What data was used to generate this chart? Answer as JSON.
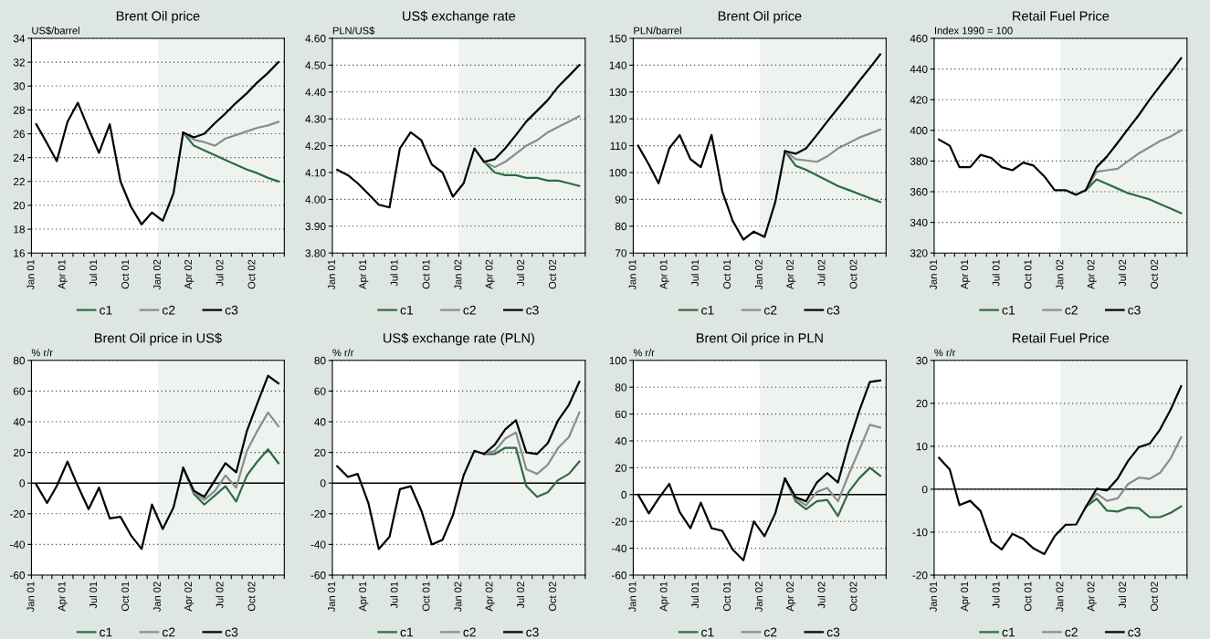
{
  "chart_data": [
    {
      "type": "line",
      "title": "Brent Oil price",
      "ylabel": "US$/barrel",
      "x": [
        "2001-01-15",
        "2001-02-15",
        "2001-03-15",
        "2001-04-15",
        "2001-05-15",
        "2001-06-15",
        "2001-07-15",
        "2001-08-15",
        "2001-09-15",
        "2001-10-15",
        "2001-11-15",
        "2001-12-15",
        "2002-01-15",
        "2002-02-15",
        "2002-03-15",
        "2002-04-15",
        "2002-05-15",
        "2002-06-15",
        "2002-07-15",
        "2002-08-15",
        "2002-09-15",
        "2002-10-15",
        "2002-11-15",
        "2002-12-15"
      ],
      "series": [
        {
          "name": "c1",
          "color": "#2e6b45",
          "values": [
            null,
            null,
            null,
            null,
            null,
            null,
            null,
            null,
            null,
            null,
            null,
            null,
            null,
            null,
            26.1,
            25.0,
            24.6,
            24.2,
            23.8,
            23.4,
            23.0,
            22.7,
            22.3,
            22.0
          ]
        },
        {
          "name": "c2",
          "color": "#8c8c8c",
          "values": [
            null,
            null,
            null,
            null,
            null,
            null,
            null,
            null,
            null,
            null,
            null,
            null,
            null,
            null,
            26.1,
            25.5,
            25.3,
            25.0,
            25.6,
            25.9,
            26.2,
            26.5,
            26.7,
            27.0
          ]
        },
        {
          "name": "c3",
          "color": "#000000",
          "values": [
            26.8,
            25.2,
            23.7,
            27.0,
            28.6,
            26.4,
            24.4,
            26.8,
            22.0,
            19.9,
            18.4,
            19.4,
            18.7,
            21.0,
            26.1,
            25.7,
            26.0,
            26.9,
            27.7,
            28.6,
            29.4,
            30.3,
            31.1,
            32.0
          ]
        }
      ],
      "xlim": [
        "2001-01",
        "2003-01"
      ],
      "xticks": [
        {
          "value": "2001-01",
          "label": "Jan 01"
        },
        {
          "value": "2001-02",
          "label": null
        },
        {
          "value": "2001-03",
          "label": null
        },
        {
          "value": "2001-04",
          "label": "Apr 01"
        },
        {
          "value": "2001-05",
          "label": null
        },
        {
          "value": "2001-06",
          "label": null
        },
        {
          "value": "2001-07",
          "label": "Jul 01"
        },
        {
          "value": "2001-08",
          "label": null
        },
        {
          "value": "2001-09",
          "label": null
        },
        {
          "value": "2001-10",
          "label": "Oct 01"
        },
        {
          "value": "2001-11",
          "label": null
        },
        {
          "value": "2001-12",
          "label": null
        },
        {
          "value": "2002-01",
          "label": "Jan 02"
        },
        {
          "value": "2002-02",
          "label": null
        },
        {
          "value": "2002-03",
          "label": null
        },
        {
          "value": "2002-04",
          "label": "Apr 02"
        },
        {
          "value": "2002-05",
          "label": null
        },
        {
          "value": "2002-06",
          "label": null
        },
        {
          "value": "2002-07",
          "label": "Jul 02"
        },
        {
          "value": "2002-08",
          "label": null
        },
        {
          "value": "2002-09",
          "label": null
        },
        {
          "value": "2002-10",
          "label": "Oct 02"
        },
        {
          "value": "2002-11",
          "label": null
        },
        {
          "value": "2002-12",
          "label": null
        },
        {
          "value": "2003-01",
          "label": null
        }
      ],
      "ylim": [
        16,
        34
      ],
      "yticks": [
        16,
        18,
        20,
        22,
        24,
        26,
        28,
        30,
        32,
        34
      ],
      "bands": [
        {
          "axis": "x",
          "from": "2002-01",
          "to": "2003-01",
          "label": null,
          "color": "#eef3f0"
        }
      ],
      "grid": "y",
      "legend": "bottom"
    },
    {
      "type": "line",
      "title": "US$ exchange rate",
      "ylabel": "PLN/US$",
      "x": [
        "2001-01-15",
        "2001-02-15",
        "2001-03-15",
        "2001-04-15",
        "2001-05-15",
        "2001-06-15",
        "2001-07-15",
        "2001-08-15",
        "2001-09-15",
        "2001-10-15",
        "2001-11-15",
        "2001-12-15",
        "2002-01-15",
        "2002-02-15",
        "2002-03-15",
        "2002-04-15",
        "2002-05-15",
        "2002-06-15",
        "2002-07-15",
        "2002-08-15",
        "2002-09-15",
        "2002-10-15",
        "2002-11-15",
        "2002-12-15"
      ],
      "series": [
        {
          "name": "c1",
          "color": "#2e6b45",
          "values": [
            null,
            null,
            null,
            null,
            null,
            null,
            null,
            null,
            null,
            null,
            null,
            null,
            null,
            null,
            4.14,
            4.1,
            4.09,
            4.09,
            4.08,
            4.08,
            4.07,
            4.07,
            4.06,
            4.05
          ]
        },
        {
          "name": "c2",
          "color": "#8c8c8c",
          "values": [
            null,
            null,
            null,
            null,
            null,
            null,
            null,
            null,
            null,
            null,
            null,
            null,
            null,
            null,
            4.14,
            4.12,
            4.14,
            4.17,
            4.2,
            4.22,
            4.25,
            4.27,
            4.29,
            4.31
          ]
        },
        {
          "name": "c3",
          "color": "#000000",
          "values": [
            4.11,
            4.09,
            4.06,
            4.02,
            3.98,
            3.97,
            4.19,
            4.25,
            4.22,
            4.13,
            4.1,
            4.01,
            4.06,
            4.19,
            4.14,
            4.15,
            4.19,
            4.24,
            4.29,
            4.33,
            4.37,
            4.42,
            4.46,
            4.5
          ]
        }
      ],
      "xlim": [
        "2001-01",
        "2003-01"
      ],
      "xticks": [
        {
          "value": "2001-01",
          "label": "Jan 01"
        },
        {
          "value": "2001-02",
          "label": null
        },
        {
          "value": "2001-03",
          "label": null
        },
        {
          "value": "2001-04",
          "label": "Apr 01"
        },
        {
          "value": "2001-05",
          "label": null
        },
        {
          "value": "2001-06",
          "label": null
        },
        {
          "value": "2001-07",
          "label": "Jul 01"
        },
        {
          "value": "2001-08",
          "label": null
        },
        {
          "value": "2001-09",
          "label": null
        },
        {
          "value": "2001-10",
          "label": "Oct 01"
        },
        {
          "value": "2001-11",
          "label": null
        },
        {
          "value": "2001-12",
          "label": null
        },
        {
          "value": "2002-01",
          "label": "Jan 02"
        },
        {
          "value": "2002-02",
          "label": null
        },
        {
          "value": "2002-03",
          "label": null
        },
        {
          "value": "2002-04",
          "label": "Apr 02"
        },
        {
          "value": "2002-05",
          "label": null
        },
        {
          "value": "2002-06",
          "label": null
        },
        {
          "value": "2002-07",
          "label": "Jul 02"
        },
        {
          "value": "2002-08",
          "label": null
        },
        {
          "value": "2002-09",
          "label": null
        },
        {
          "value": "2002-10",
          "label": "Oct 02"
        },
        {
          "value": "2002-11",
          "label": null
        },
        {
          "value": "2002-12",
          "label": null
        },
        {
          "value": "2003-01",
          "label": null
        }
      ],
      "ylim": [
        3.8,
        4.6
      ],
      "yticks": [
        {
          "value": 3.8,
          "label": "3.80"
        },
        {
          "value": 3.9,
          "label": "3.90"
        },
        {
          "value": 4.0,
          "label": "4.00"
        },
        {
          "value": 4.1,
          "label": "4.10"
        },
        {
          "value": 4.2,
          "label": "4.20"
        },
        {
          "value": 4.3,
          "label": "4.30"
        },
        {
          "value": 4.4,
          "label": "4.40"
        },
        {
          "value": 4.5,
          "label": "4.50"
        },
        {
          "value": 4.6,
          "label": "4.60"
        }
      ],
      "bands": [
        {
          "axis": "x",
          "from": "2002-01",
          "to": "2003-01",
          "label": null,
          "color": "#eef3f0"
        }
      ],
      "grid": "y",
      "legend": "bottom"
    },
    {
      "type": "line",
      "title": "Brent Oil price",
      "ylabel": "PLN/barrel",
      "x": [
        "2001-01-15",
        "2001-02-15",
        "2001-03-15",
        "2001-04-15",
        "2001-05-15",
        "2001-06-15",
        "2001-07-15",
        "2001-08-15",
        "2001-09-15",
        "2001-10-15",
        "2001-11-15",
        "2001-12-15",
        "2002-01-15",
        "2002-02-15",
        "2002-03-15",
        "2002-04-15",
        "2002-05-15",
        "2002-06-15",
        "2002-07-15",
        "2002-08-15",
        "2002-09-15",
        "2002-10-15",
        "2002-11-15",
        "2002-12-15"
      ],
      "series": [
        {
          "name": "c1",
          "color": "#2e6b45",
          "values": [
            null,
            null,
            null,
            null,
            null,
            null,
            null,
            null,
            null,
            null,
            null,
            null,
            null,
            null,
            108,
            102.5,
            101,
            99,
            97,
            95,
            93.5,
            92,
            90.5,
            89
          ]
        },
        {
          "name": "c2",
          "color": "#8c8c8c",
          "values": [
            null,
            null,
            null,
            null,
            null,
            null,
            null,
            null,
            null,
            null,
            null,
            null,
            null,
            null,
            108,
            105,
            104.5,
            104,
            106,
            109,
            111,
            113,
            114.5,
            116
          ]
        },
        {
          "name": "c3",
          "color": "#000000",
          "values": [
            110,
            103,
            96,
            109,
            114,
            105,
            102,
            114,
            93,
            82,
            75,
            78,
            76,
            89,
            108,
            107,
            109,
            114,
            119,
            124,
            129,
            134,
            139,
            144
          ]
        }
      ],
      "xlim": [
        "2001-01",
        "2003-01"
      ],
      "xticks": [
        {
          "value": "2001-01",
          "label": "Jan 01"
        },
        {
          "value": "2001-02",
          "label": null
        },
        {
          "value": "2001-03",
          "label": null
        },
        {
          "value": "2001-04",
          "label": "Apr 01"
        },
        {
          "value": "2001-05",
          "label": null
        },
        {
          "value": "2001-06",
          "label": null
        },
        {
          "value": "2001-07",
          "label": "Jul 01"
        },
        {
          "value": "2001-08",
          "label": null
        },
        {
          "value": "2001-09",
          "label": null
        },
        {
          "value": "2001-10",
          "label": "Oct 01"
        },
        {
          "value": "2001-11",
          "label": null
        },
        {
          "value": "2001-12",
          "label": null
        },
        {
          "value": "2002-01",
          "label": "Jan 02"
        },
        {
          "value": "2002-02",
          "label": null
        },
        {
          "value": "2002-03",
          "label": null
        },
        {
          "value": "2002-04",
          "label": "Apr 02"
        },
        {
          "value": "2002-05",
          "label": null
        },
        {
          "value": "2002-06",
          "label": null
        },
        {
          "value": "2002-07",
          "label": "Jul 02"
        },
        {
          "value": "2002-08",
          "label": null
        },
        {
          "value": "2002-09",
          "label": null
        },
        {
          "value": "2002-10",
          "label": "Oct 02"
        },
        {
          "value": "2002-11",
          "label": null
        },
        {
          "value": "2002-12",
          "label": null
        },
        {
          "value": "2003-01",
          "label": null
        }
      ],
      "ylim": [
        70,
        150
      ],
      "yticks": [
        70,
        80,
        90,
        100,
        110,
        120,
        130,
        140,
        150
      ],
      "bands": [
        {
          "axis": "x",
          "from": "2002-01",
          "to": "2003-01",
          "label": null,
          "color": "#eef3f0"
        }
      ],
      "grid": "y",
      "legend": "bottom"
    },
    {
      "type": "line",
      "title": "Retail Fuel Price",
      "ylabel": "Index 1990 = 100",
      "x": [
        "2001-01-15",
        "2001-02-15",
        "2001-03-15",
        "2001-04-15",
        "2001-05-15",
        "2001-06-15",
        "2001-07-15",
        "2001-08-15",
        "2001-09-15",
        "2001-10-15",
        "2001-11-15",
        "2001-12-15",
        "2002-01-15",
        "2002-02-15",
        "2002-03-15",
        "2002-04-15",
        "2002-05-15",
        "2002-06-15",
        "2002-07-15",
        "2002-08-15",
        "2002-09-15",
        "2002-10-15",
        "2002-11-15",
        "2002-12-15"
      ],
      "series": [
        {
          "name": "c1",
          "color": "#2e6b45",
          "values": [
            null,
            null,
            null,
            null,
            null,
            null,
            null,
            null,
            null,
            null,
            null,
            null,
            null,
            null,
            361,
            368,
            365,
            362,
            359,
            357,
            355,
            352,
            349,
            346
          ]
        },
        {
          "name": "c2",
          "color": "#8c8c8c",
          "values": [
            null,
            null,
            null,
            null,
            null,
            null,
            null,
            null,
            null,
            null,
            null,
            null,
            null,
            null,
            361,
            373,
            374,
            375,
            380,
            385,
            389,
            393,
            396,
            400
          ]
        },
        {
          "name": "c3",
          "color": "#000000",
          "values": [
            394,
            390,
            376,
            376,
            384,
            382,
            376,
            374,
            379,
            377,
            370,
            361,
            361,
            358,
            361,
            376,
            383,
            392,
            401,
            410,
            420,
            429,
            438,
            447
          ]
        }
      ],
      "xlim": [
        "2001-01",
        "2003-01"
      ],
      "xticks": [
        {
          "value": "2001-01",
          "label": "Jan 01"
        },
        {
          "value": "2001-02",
          "label": null
        },
        {
          "value": "2001-03",
          "label": null
        },
        {
          "value": "2001-04",
          "label": "Apr 01"
        },
        {
          "value": "2001-05",
          "label": null
        },
        {
          "value": "2001-06",
          "label": null
        },
        {
          "value": "2001-07",
          "label": "Jul 01"
        },
        {
          "value": "2001-08",
          "label": null
        },
        {
          "value": "2001-09",
          "label": null
        },
        {
          "value": "2001-10",
          "label": "Oct 01"
        },
        {
          "value": "2001-11",
          "label": null
        },
        {
          "value": "2001-12",
          "label": null
        },
        {
          "value": "2002-01",
          "label": "Jan 02"
        },
        {
          "value": "2002-02",
          "label": null
        },
        {
          "value": "2002-03",
          "label": null
        },
        {
          "value": "2002-04",
          "label": "Apr 02"
        },
        {
          "value": "2002-05",
          "label": null
        },
        {
          "value": "2002-06",
          "label": null
        },
        {
          "value": "2002-07",
          "label": "Jul 02"
        },
        {
          "value": "2002-08",
          "label": null
        },
        {
          "value": "2002-09",
          "label": null
        },
        {
          "value": "2002-10",
          "label": "Oct 02"
        },
        {
          "value": "2002-11",
          "label": null
        },
        {
          "value": "2002-12",
          "label": null
        },
        {
          "value": "2003-01",
          "label": null
        }
      ],
      "ylim": [
        320,
        460
      ],
      "yticks": [
        320,
        340,
        360,
        380,
        400,
        420,
        440,
        460
      ],
      "bands": [
        {
          "axis": "x",
          "from": "2002-01",
          "to": "2003-01",
          "label": null,
          "color": "#eef3f0"
        }
      ],
      "grid": "y",
      "legend": "bottom"
    },
    {
      "type": "line",
      "title": "Brent Oil price in US$",
      "ylabel": "% r/r",
      "x": [
        "2001-01-15",
        "2001-02-15",
        "2001-03-15",
        "2001-04-15",
        "2001-05-15",
        "2001-06-15",
        "2001-07-15",
        "2001-08-15",
        "2001-09-15",
        "2001-10-15",
        "2001-11-15",
        "2001-12-15",
        "2002-01-15",
        "2002-02-15",
        "2002-03-15",
        "2002-04-15",
        "2002-05-15",
        "2002-06-15",
        "2002-07-15",
        "2002-08-15",
        "2002-09-15",
        "2002-10-15",
        "2002-11-15",
        "2002-12-15"
      ],
      "series": [
        {
          "name": "c1",
          "color": "#2e6b45",
          "values": [
            null,
            null,
            null,
            null,
            null,
            null,
            null,
            null,
            null,
            null,
            null,
            null,
            null,
            null,
            10,
            -7,
            -14,
            -8,
            -2,
            -12,
            5,
            14,
            22,
            13
          ]
        },
        {
          "name": "c2",
          "color": "#8c8c8c",
          "values": [
            null,
            null,
            null,
            null,
            null,
            null,
            null,
            null,
            null,
            null,
            null,
            null,
            null,
            null,
            10,
            -6,
            -11,
            -5,
            5,
            -3,
            21,
            34,
            46,
            37
          ]
        },
        {
          "name": "c3",
          "color": "#000000",
          "values": [
            -1,
            -13,
            -2,
            14,
            -2,
            -17,
            -3,
            -23,
            -22,
            -34,
            -43,
            -14,
            -30,
            -16,
            10,
            -5,
            -9,
            2,
            13,
            7,
            34,
            52,
            70,
            65
          ]
        }
      ],
      "xlim": [
        "2001-01",
        "2003-01"
      ],
      "xticks": [
        {
          "value": "2001-01",
          "label": "Jan 01"
        },
        {
          "value": "2001-02",
          "label": null
        },
        {
          "value": "2001-03",
          "label": null
        },
        {
          "value": "2001-04",
          "label": "Apr 01"
        },
        {
          "value": "2001-05",
          "label": null
        },
        {
          "value": "2001-06",
          "label": null
        },
        {
          "value": "2001-07",
          "label": "Jul 01"
        },
        {
          "value": "2001-08",
          "label": null
        },
        {
          "value": "2001-09",
          "label": null
        },
        {
          "value": "2001-10",
          "label": "Oct 01"
        },
        {
          "value": "2001-11",
          "label": null
        },
        {
          "value": "2001-12",
          "label": null
        },
        {
          "value": "2002-01",
          "label": "Jan 02"
        },
        {
          "value": "2002-02",
          "label": null
        },
        {
          "value": "2002-03",
          "label": null
        },
        {
          "value": "2002-04",
          "label": "Apr 02"
        },
        {
          "value": "2002-05",
          "label": null
        },
        {
          "value": "2002-06",
          "label": null
        },
        {
          "value": "2002-07",
          "label": "Jul 02"
        },
        {
          "value": "2002-08",
          "label": null
        },
        {
          "value": "2002-09",
          "label": null
        },
        {
          "value": "2002-10",
          "label": "Oct 02"
        },
        {
          "value": "2002-11",
          "label": null
        },
        {
          "value": "2002-12",
          "label": null
        },
        {
          "value": "2003-01",
          "label": null
        }
      ],
      "ylim": [
        -60,
        80
      ],
      "yticks": [
        -60,
        -40,
        -20,
        0,
        20,
        40,
        60,
        80
      ],
      "bands": [
        {
          "axis": "x",
          "from": "2002-01",
          "to": "2003-01",
          "label": null,
          "color": "#eef3f0"
        }
      ],
      "ref_lines": [
        {
          "axis": "y",
          "value": 0,
          "label": null,
          "color": "#000000"
        }
      ],
      "grid": "y",
      "legend": "bottom"
    },
    {
      "type": "line",
      "title": "US$ exchange rate (PLN)",
      "ylabel": "% r/r",
      "x": [
        "2001-01-15",
        "2001-02-15",
        "2001-03-15",
        "2001-04-15",
        "2001-05-15",
        "2001-06-15",
        "2001-07-15",
        "2001-08-15",
        "2001-09-15",
        "2001-10-15",
        "2001-11-15",
        "2001-12-15",
        "2002-01-15",
        "2002-02-15",
        "2002-03-15",
        "2002-04-15",
        "2002-05-15",
        "2002-06-15",
        "2002-07-15",
        "2002-08-15",
        "2002-09-15",
        "2002-10-15",
        "2002-11-15",
        "2002-12-15"
      ],
      "series": [
        {
          "name": "c1",
          "color": "#2e6b45",
          "values": [
            null,
            null,
            null,
            null,
            null,
            null,
            null,
            null,
            null,
            null,
            null,
            null,
            null,
            null,
            19,
            19,
            23,
            23,
            -2,
            -9,
            -6,
            2,
            6,
            14
          ]
        },
        {
          "name": "c2",
          "color": "#8c8c8c",
          "values": [
            null,
            null,
            null,
            null,
            null,
            null,
            null,
            null,
            null,
            null,
            null,
            null,
            null,
            null,
            19,
            21,
            29,
            33,
            9,
            6,
            12,
            23,
            30,
            46
          ]
        },
        {
          "name": "c3",
          "color": "#000000",
          "values": [
            11,
            4,
            6,
            -13,
            -43,
            -35,
            -4,
            -2,
            -18,
            -40,
            -37,
            -21,
            5,
            21,
            19,
            25,
            35,
            41,
            20,
            19,
            26,
            41,
            51,
            66
          ]
        }
      ],
      "xlim": [
        "2001-01",
        "2003-01"
      ],
      "xticks": [
        {
          "value": "2001-01",
          "label": "Jan 01"
        },
        {
          "value": "2001-02",
          "label": null
        },
        {
          "value": "2001-03",
          "label": null
        },
        {
          "value": "2001-04",
          "label": "Apr 01"
        },
        {
          "value": "2001-05",
          "label": null
        },
        {
          "value": "2001-06",
          "label": null
        },
        {
          "value": "2001-07",
          "label": "Jul 01"
        },
        {
          "value": "2001-08",
          "label": null
        },
        {
          "value": "2001-09",
          "label": null
        },
        {
          "value": "2001-10",
          "label": "Oct 01"
        },
        {
          "value": "2001-11",
          "label": null
        },
        {
          "value": "2001-12",
          "label": null
        },
        {
          "value": "2002-01",
          "label": "Jan 02"
        },
        {
          "value": "2002-02",
          "label": null
        },
        {
          "value": "2002-03",
          "label": null
        },
        {
          "value": "2002-04",
          "label": "Apr 02"
        },
        {
          "value": "2002-05",
          "label": null
        },
        {
          "value": "2002-06",
          "label": null
        },
        {
          "value": "2002-07",
          "label": "Jul 02"
        },
        {
          "value": "2002-08",
          "label": null
        },
        {
          "value": "2002-09",
          "label": null
        },
        {
          "value": "2002-10",
          "label": "Oct 02"
        },
        {
          "value": "2002-11",
          "label": null
        },
        {
          "value": "2002-12",
          "label": null
        },
        {
          "value": "2003-01",
          "label": null
        }
      ],
      "ylim": [
        -60,
        80
      ],
      "yticks": [
        -60,
        -40,
        -20,
        0,
        20,
        40,
        60,
        80
      ],
      "bands": [
        {
          "axis": "x",
          "from": "2002-01",
          "to": "2003-01",
          "label": null,
          "color": "#eef3f0"
        }
      ],
      "ref_lines": [
        {
          "axis": "y",
          "value": 0,
          "label": null,
          "color": "#000000"
        }
      ],
      "grid": "y",
      "legend": "bottom"
    },
    {
      "type": "line",
      "title": "Brent Oil price in PLN",
      "ylabel": "% r/r",
      "x": [
        "2001-01-15",
        "2001-02-15",
        "2001-03-15",
        "2001-04-15",
        "2001-05-15",
        "2001-06-15",
        "2001-07-15",
        "2001-08-15",
        "2001-09-15",
        "2001-10-15",
        "2001-11-15",
        "2001-12-15",
        "2002-01-15",
        "2002-02-15",
        "2002-03-15",
        "2002-04-15",
        "2002-05-15",
        "2002-06-15",
        "2002-07-15",
        "2002-08-15",
        "2002-09-15",
        "2002-10-15",
        "2002-11-15",
        "2002-12-15"
      ],
      "series": [
        {
          "name": "c1",
          "color": "#2e6b45",
          "values": [
            null,
            null,
            null,
            null,
            null,
            null,
            null,
            null,
            null,
            null,
            null,
            null,
            null,
            null,
            12,
            -5,
            -11,
            -5,
            -4,
            -16,
            2,
            12,
            20,
            14
          ]
        },
        {
          "name": "c2",
          "color": "#8c8c8c",
          "values": [
            null,
            null,
            null,
            null,
            null,
            null,
            null,
            null,
            null,
            null,
            null,
            null,
            null,
            null,
            12,
            -3,
            -8,
            2,
            5,
            -5,
            15,
            33,
            52,
            50
          ]
        },
        {
          "name": "c3",
          "color": "#000000",
          "values": [
            0,
            -14,
            -3,
            8,
            -13,
            -25,
            -6,
            -25,
            -27,
            -41,
            -49,
            -20,
            -31,
            -14,
            12,
            -2,
            -5,
            9,
            16,
            9,
            38,
            62,
            84,
            85
          ]
        }
      ],
      "xlim": [
        "2001-01",
        "2003-01"
      ],
      "xticks": [
        {
          "value": "2001-01",
          "label": "Jan 01"
        },
        {
          "value": "2001-02",
          "label": null
        },
        {
          "value": "2001-03",
          "label": null
        },
        {
          "value": "2001-04",
          "label": "Apr 01"
        },
        {
          "value": "2001-05",
          "label": null
        },
        {
          "value": "2001-06",
          "label": null
        },
        {
          "value": "2001-07",
          "label": "Jul 01"
        },
        {
          "value": "2001-08",
          "label": null
        },
        {
          "value": "2001-09",
          "label": null
        },
        {
          "value": "2001-10",
          "label": "Oct 01"
        },
        {
          "value": "2001-11",
          "label": null
        },
        {
          "value": "2001-12",
          "label": null
        },
        {
          "value": "2002-01",
          "label": "Jan 02"
        },
        {
          "value": "2002-02",
          "label": null
        },
        {
          "value": "2002-03",
          "label": null
        },
        {
          "value": "2002-04",
          "label": "Apr 02"
        },
        {
          "value": "2002-05",
          "label": null
        },
        {
          "value": "2002-06",
          "label": null
        },
        {
          "value": "2002-07",
          "label": "Jul 02"
        },
        {
          "value": "2002-08",
          "label": null
        },
        {
          "value": "2002-09",
          "label": null
        },
        {
          "value": "2002-10",
          "label": "Oct 02"
        },
        {
          "value": "2002-11",
          "label": null
        },
        {
          "value": "2002-12",
          "label": null
        },
        {
          "value": "2003-01",
          "label": null
        }
      ],
      "ylim": [
        -60,
        100
      ],
      "yticks": [
        -60,
        -40,
        -20,
        0,
        20,
        40,
        60,
        80,
        100
      ],
      "bands": [
        {
          "axis": "x",
          "from": "2002-01",
          "to": "2003-01",
          "label": null,
          "color": "#eef3f0"
        }
      ],
      "ref_lines": [
        {
          "axis": "y",
          "value": 0,
          "label": null,
          "color": "#000000"
        }
      ],
      "grid": "y",
      "legend": "bottom"
    },
    {
      "type": "line",
      "title": "Retail Fuel Price",
      "ylabel": "% r/r",
      "x": [
        "2001-01-15",
        "2001-02-15",
        "2001-03-15",
        "2001-04-15",
        "2001-05-15",
        "2001-06-15",
        "2001-07-15",
        "2001-08-15",
        "2001-09-15",
        "2001-10-15",
        "2001-11-15",
        "2001-12-15",
        "2002-01-15",
        "2002-02-15",
        "2002-03-15",
        "2002-04-15",
        "2002-05-15",
        "2002-06-15",
        "2002-07-15",
        "2002-08-15",
        "2002-09-15",
        "2002-10-15",
        "2002-11-15",
        "2002-12-15"
      ],
      "series": [
        {
          "name": "c1",
          "color": "#2e6b45",
          "values": [
            null,
            null,
            null,
            null,
            null,
            null,
            null,
            null,
            null,
            null,
            null,
            null,
            null,
            null,
            -4.1,
            -2.2,
            -5.0,
            -5.2,
            -4.3,
            -4.4,
            -6.5,
            -6.5,
            -5.5,
            -4.0
          ]
        },
        {
          "name": "c2",
          "color": "#8c8c8c",
          "values": [
            null,
            null,
            null,
            null,
            null,
            null,
            null,
            null,
            null,
            null,
            null,
            null,
            null,
            null,
            -4.1,
            -1.0,
            -2.7,
            -2.1,
            1.2,
            2.7,
            2.4,
            3.8,
            7.2,
            12.1
          ]
        },
        {
          "name": "c3",
          "color": "#000000",
          "values": [
            7.3,
            4.6,
            -3.7,
            -2.7,
            -5.1,
            -12.2,
            -14.0,
            -10.4,
            -11.6,
            -13.8,
            -15.1,
            -10.9,
            -8.3,
            -8.2,
            -4.1,
            0.1,
            -0.3,
            2.5,
            6.6,
            9.8,
            10.6,
            13.9,
            18.6,
            24.0
          ]
        }
      ],
      "xlim": [
        "2001-01",
        "2003-01"
      ],
      "xticks": [
        {
          "value": "2001-01",
          "label": "Jan 01"
        },
        {
          "value": "2001-02",
          "label": null
        },
        {
          "value": "2001-03",
          "label": null
        },
        {
          "value": "2001-04",
          "label": "Apr 01"
        },
        {
          "value": "2001-05",
          "label": null
        },
        {
          "value": "2001-06",
          "label": null
        },
        {
          "value": "2001-07",
          "label": "Jul 01"
        },
        {
          "value": "2001-08",
          "label": null
        },
        {
          "value": "2001-09",
          "label": null
        },
        {
          "value": "2001-10",
          "label": "Oct 01"
        },
        {
          "value": "2001-11",
          "label": null
        },
        {
          "value": "2001-12",
          "label": null
        },
        {
          "value": "2002-01",
          "label": "Jan 02"
        },
        {
          "value": "2002-02",
          "label": null
        },
        {
          "value": "2002-03",
          "label": null
        },
        {
          "value": "2002-04",
          "label": "Apr 02"
        },
        {
          "value": "2002-05",
          "label": null
        },
        {
          "value": "2002-06",
          "label": null
        },
        {
          "value": "2002-07",
          "label": "Jul 02"
        },
        {
          "value": "2002-08",
          "label": null
        },
        {
          "value": "2002-09",
          "label": null
        },
        {
          "value": "2002-10",
          "label": "Oct 02"
        },
        {
          "value": "2002-11",
          "label": null
        },
        {
          "value": "2002-12",
          "label": null
        },
        {
          "value": "2003-01",
          "label": null
        }
      ],
      "ylim": [
        -20,
        30
      ],
      "yticks": [
        -20,
        -10,
        0,
        10,
        20,
        30
      ],
      "bands": [
        {
          "axis": "x",
          "from": "2002-01",
          "to": "2003-01",
          "label": null,
          "color": "#eef3f0"
        }
      ],
      "ref_lines": [
        {
          "axis": "y",
          "value": 0,
          "label": null,
          "color": "#000000"
        }
      ],
      "grid": "y",
      "legend": "bottom"
    }
  ]
}
